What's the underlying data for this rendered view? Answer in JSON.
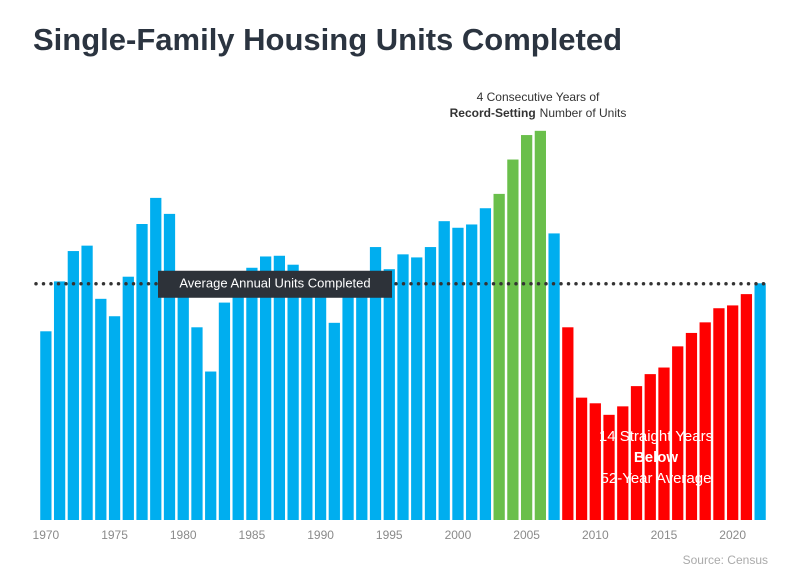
{
  "chart_data": {
    "type": "bar",
    "title": "Single-Family Housing Units Completed",
    "categories": [
      "1970",
      null,
      null,
      null,
      null,
      "1975",
      null,
      null,
      null,
      null,
      "1980",
      null,
      null,
      null,
      null,
      "1985",
      null,
      null,
      null,
      null,
      "1990",
      null,
      null,
      null,
      null,
      "1995",
      null,
      null,
      null,
      null,
      "2000",
      null,
      null,
      null,
      null,
      "2005",
      null,
      null,
      null,
      null,
      "2010",
      null,
      null,
      null,
      null,
      "2015",
      null,
      null,
      null,
      null,
      "2020",
      null,
      null
    ],
    "values": [
      802,
      1014,
      1143,
      1166,
      940,
      866,
      1034,
      1258,
      1369,
      1301,
      957,
      819,
      631,
      924,
      1025,
      1072,
      1120,
      1123,
      1085,
      1026,
      966,
      838,
      964,
      1039,
      1160,
      1066,
      1129,
      1116,
      1160,
      1270,
      1242,
      1256,
      1325,
      1386,
      1532,
      1636,
      1654,
      1218,
      819,
      520,
      496,
      447,
      483,
      569,
      620,
      648,
      738,
      795,
      840,
      900,
      912,
      960,
      1006
    ],
    "colors": [
      "#00aeef",
      "#00aeef",
      "#00aeef",
      "#00aeef",
      "#00aeef",
      "#00aeef",
      "#00aeef",
      "#00aeef",
      "#00aeef",
      "#00aeef",
      "#00aeef",
      "#00aeef",
      "#00aeef",
      "#00aeef",
      "#00aeef",
      "#00aeef",
      "#00aeef",
      "#00aeef",
      "#00aeef",
      "#00aeef",
      "#00aeef",
      "#00aeef",
      "#00aeef",
      "#00aeef",
      "#00aeef",
      "#00aeef",
      "#00aeef",
      "#00aeef",
      "#00aeef",
      "#00aeef",
      "#00aeef",
      "#00aeef",
      "#00aeef",
      "#6abf4b",
      "#6abf4b",
      "#6abf4b",
      "#6abf4b",
      "#00aeef",
      "#ff0000",
      "#ff0000",
      "#ff0000",
      "#ff0000",
      "#ff0000",
      "#ff0000",
      "#ff0000",
      "#ff0000",
      "#ff0000",
      "#ff0000",
      "#ff0000",
      "#ff0000",
      "#ff0000",
      "#ff0000",
      "#00aeef"
    ],
    "ylim": [
      0,
      1700
    ],
    "average": 1004,
    "average_label": "Average Annual Units Completed",
    "record_annotation": {
      "line1": "4 Consecutive Years of",
      "bold": "Record-Setting",
      "rest": "Number of Units"
    },
    "below_annotation": {
      "line1": "14 Straight Years",
      "bold": "Below",
      "line3": "52-Year Average"
    },
    "source": "Source: Census"
  }
}
